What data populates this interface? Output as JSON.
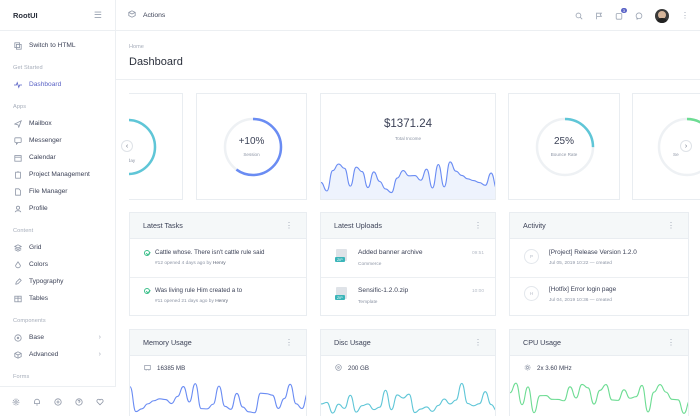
{
  "brand": "RootUI",
  "topbar": {
    "title": "Actions",
    "notification_count": "3"
  },
  "breadcrumb": "Home",
  "page_title": "Dashboard",
  "sidebar": {
    "switch_label": "Switch to HTML",
    "sections": {
      "get_started": "Get Started",
      "apps": "Apps",
      "content": "Content",
      "components": "Components",
      "forms": "Forms"
    },
    "dashboard": "Dashboard",
    "apps": [
      "Mailbox",
      "Messenger",
      "Calendar",
      "Project Management",
      "File Manager",
      "Profile"
    ],
    "content": [
      "Grid",
      "Colors",
      "Typography",
      "Tables"
    ],
    "components": [
      "Base",
      "Advanced"
    ]
  },
  "stats": {
    "partial_left_value": "%",
    "partial_left_label": "day",
    "session_value": "+10%",
    "session_label": "Session",
    "income_value": "$1371.24",
    "income_label": "Total Income",
    "bounce_value": "25%",
    "bounce_label": "Bounce Rate",
    "partial_right_label": "Se",
    "session_progress": 0.6,
    "bounce_progress": 0.25,
    "left_progress": 0.7
  },
  "tasks": {
    "title": "Latest Tasks",
    "items": [
      {
        "text": "Cattle whose. There isn't cattle rule said",
        "meta_prefix": "#12 opened 4 days ago by",
        "user": "Henry"
      },
      {
        "text": "Was living rule Him created a to",
        "meta_prefix": "#11 opened 21 days ago by",
        "user": "Henry"
      }
    ]
  },
  "uploads": {
    "title": "Latest Uploads",
    "items": [
      {
        "name": "Added banner archive",
        "sub": "Commerce",
        "time": "09:51",
        "type": "ZIP"
      },
      {
        "name": "Sensific-1.2.0.zip",
        "sub": "Template",
        "time": "10:00",
        "type": "ZIP"
      }
    ]
  },
  "activity": {
    "title": "Activity",
    "items": [
      {
        "title": "[Project] Release Version 1.2.0",
        "sub": "Jul 05, 2019 10:22 — created",
        "mark": "P"
      },
      {
        "title": "[Hotfix] Error login page",
        "sub": "Jul 04, 2019 10:36 — created",
        "mark": "H"
      }
    ]
  },
  "memory": {
    "title": "Memory Usage",
    "value": "16385 MB"
  },
  "disc": {
    "title": "Disc Usage",
    "value": "200 GB"
  },
  "cpu": {
    "title": "CPU Usage",
    "value": "2x 3.60 MHz"
  },
  "colors": {
    "accent": "#5a63c6",
    "teal": "#5fc6d7",
    "green": "#6ddc93",
    "blue": "#6a8cf3"
  }
}
